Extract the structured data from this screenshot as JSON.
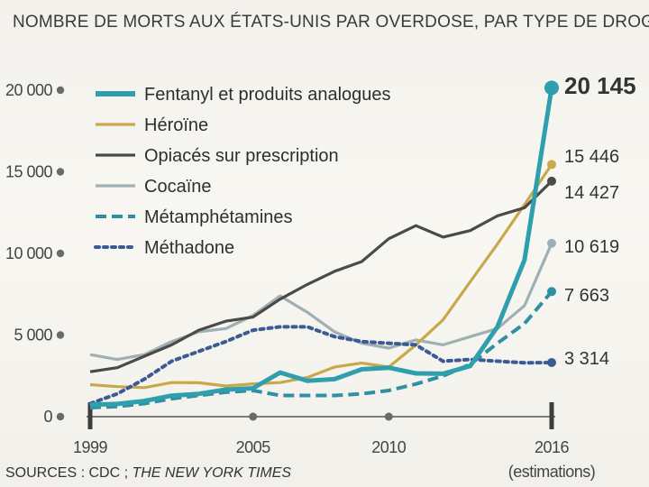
{
  "chart_data": {
    "type": "line",
    "title": "NOMBRE DE MORTS AUX ÉTATS-UNIS PAR OVERDOSE, PAR TYPE DE DROGUE",
    "source": {
      "prefix": "SOURCES : CDC ; ",
      "name": "THE NEW YORK TIMES"
    },
    "x": [
      1999,
      2000,
      2001,
      2002,
      2003,
      2004,
      2005,
      2006,
      2007,
      2008,
      2009,
      2010,
      2011,
      2012,
      2013,
      2014,
      2015,
      2016
    ],
    "xlim": [
      1999,
      2016
    ],
    "ylim": [
      0,
      20000
    ],
    "x_ticks": [
      {
        "value": 1999,
        "label": "1999"
      },
      {
        "value": 2005,
        "label": "2005"
      },
      {
        "value": 2010,
        "label": "2010"
      },
      {
        "value": 2016,
        "label": "2016"
      }
    ],
    "x_note": "(estimations)",
    "y_ticks": [
      {
        "value": 0,
        "label": "0"
      },
      {
        "value": 5000,
        "label": "5 000"
      },
      {
        "value": 10000,
        "label": "10 000"
      },
      {
        "value": 15000,
        "label": "15 000"
      },
      {
        "value": 20000,
        "label": "20 000"
      }
    ],
    "series": [
      {
        "name": "Fentanyl et produits analogues",
        "color": "#2f9fae",
        "style": "solid-thick",
        "values": [
          730,
          780,
          960,
          1290,
          1400,
          1660,
          1740,
          2700,
          2200,
          2300,
          2900,
          3000,
          2650,
          2630,
          3100,
          5500,
          9600,
          20145
        ],
        "end_label": "20 145"
      },
      {
        "name": "Héroïne",
        "color": "#c9a84a",
        "style": "solid",
        "values": [
          1960,
          1840,
          1780,
          2090,
          2080,
          1880,
          2010,
          2090,
          2400,
          3040,
          3280,
          3040,
          4400,
          5930,
          8260,
          10570,
          12990,
          15446
        ],
        "end_label": "15 446"
      },
      {
        "name": "Opiacés sur prescription",
        "color": "#4a4a48",
        "style": "solid",
        "values": [
          2750,
          3000,
          3700,
          4400,
          5300,
          5850,
          6100,
          7200,
          8100,
          8900,
          9500,
          10900,
          11700,
          11000,
          11400,
          12300,
          12800,
          14427
        ],
        "end_label": "14 427"
      },
      {
        "name": "Cocaïne",
        "color": "#9fb0b4",
        "style": "solid",
        "values": [
          3800,
          3500,
          3800,
          4600,
          5200,
          5400,
          6200,
          7400,
          6400,
          5200,
          4500,
          4200,
          4700,
          4400,
          4900,
          5400,
          6800,
          10619
        ],
        "end_label": "10 619"
      },
      {
        "name": "Métamphétamines",
        "color": "#2f8fa3",
        "style": "dashed",
        "values": [
          550,
          620,
          800,
          1100,
          1300,
          1500,
          1600,
          1300,
          1300,
          1300,
          1400,
          1600,
          2000,
          2500,
          3200,
          4500,
          5700,
          7663
        ],
        "end_label": "7 663"
      },
      {
        "name": "Méthadone",
        "color": "#3c5a94",
        "style": "dotted",
        "values": [
          800,
          1400,
          2300,
          3400,
          4000,
          4600,
          5300,
          5500,
          5500,
          4900,
          4600,
          4500,
          4400,
          3400,
          3500,
          3400,
          3300,
          3314
        ],
        "end_label": "3 314"
      }
    ]
  }
}
